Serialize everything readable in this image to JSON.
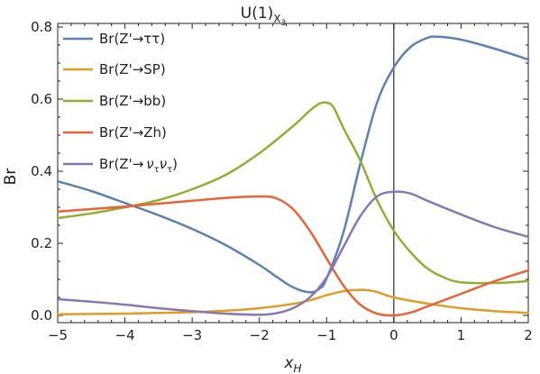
{
  "chart_data": {
    "type": "line",
    "title": "U(1)",
    "title_subscript": "X",
    "title_subsubscript": "3",
    "xlabel": "x",
    "xlabel_subscript": "H",
    "ylabel": "Br",
    "xlim": [
      -5,
      2
    ],
    "ylim": [
      -0.02,
      0.81
    ],
    "xticks": [
      -5,
      -4,
      -3,
      -2,
      -1,
      0,
      1,
      2
    ],
    "xtick_labels": [
      "−5",
      "−4",
      "−3",
      "−2",
      "−1",
      "0",
      "1",
      "2"
    ],
    "yticks": [
      0.0,
      0.2,
      0.4,
      0.6,
      0.8
    ],
    "ytick_labels": [
      "0.0",
      "0.2",
      "0.4",
      "0.6",
      "0.8"
    ],
    "vertical_line_at_x": 0,
    "grid": false,
    "legend_position": "top-left",
    "series": [
      {
        "name": "Br(Z'→ττ)",
        "color": "#5e81b5",
        "x": [
          -5,
          -4.5,
          -4,
          -3.5,
          -3,
          -2.5,
          -2,
          -1.75,
          -1.5,
          -1.25,
          -1.1,
          -1,
          -0.75,
          -0.5,
          -0.25,
          0,
          0.25,
          0.5,
          0.65,
          1,
          1.5,
          2
        ],
        "y": [
          0.372,
          0.345,
          0.312,
          0.278,
          0.24,
          0.195,
          0.14,
          0.108,
          0.078,
          0.064,
          0.075,
          0.102,
          0.23,
          0.42,
          0.59,
          0.688,
          0.745,
          0.77,
          0.773,
          0.765,
          0.74,
          0.71
        ]
      },
      {
        "name": "Br(Z'→SP)",
        "color": "#e19c24",
        "x": [
          -5,
          -4.5,
          -4,
          -3.5,
          -3,
          -2.5,
          -2,
          -1.5,
          -1.25,
          -1,
          -0.75,
          -0.5,
          -0.35,
          -0.25,
          0,
          0.5,
          1,
          1.5,
          2
        ],
        "y": [
          0.003,
          0.004,
          0.005,
          0.007,
          0.009,
          0.013,
          0.02,
          0.032,
          0.042,
          0.056,
          0.067,
          0.071,
          0.069,
          0.065,
          0.05,
          0.033,
          0.02,
          0.012,
          0.007
        ]
      },
      {
        "name": "Br(Z'→bb)",
        "color": "#8fb032",
        "x": [
          -5,
          -4.5,
          -4,
          -3.5,
          -3,
          -2.5,
          -2,
          -1.5,
          -1.25,
          -1.1,
          -1,
          -0.9,
          -0.75,
          -0.5,
          -0.25,
          0,
          0.25,
          0.5,
          0.75,
          1,
          1.5,
          2
        ],
        "y": [
          0.27,
          0.283,
          0.3,
          0.32,
          0.35,
          0.39,
          0.45,
          0.525,
          0.568,
          0.588,
          0.59,
          0.578,
          0.52,
          0.43,
          0.32,
          0.235,
          0.175,
          0.13,
          0.105,
          0.092,
          0.09,
          0.095
        ]
      },
      {
        "name": "Br(Z'→Zh)",
        "color": "#eb6235",
        "x": [
          -5,
          -4.5,
          -4,
          -3.5,
          -3,
          -2.5,
          -2,
          -1.75,
          -1.5,
          -1.25,
          -1,
          -0.75,
          -0.5,
          -0.25,
          0,
          0.25,
          0.5,
          1,
          1.5,
          2
        ],
        "y": [
          0.288,
          0.295,
          0.302,
          0.31,
          0.318,
          0.326,
          0.33,
          0.325,
          0.295,
          0.235,
          0.158,
          0.083,
          0.03,
          0.005,
          0.0,
          0.008,
          0.025,
          0.06,
          0.095,
          0.125
        ]
      },
      {
        "name": "Br(Z'→ ν_τν_τ)",
        "color": "#8778b3",
        "x": [
          -5,
          -4.5,
          -4,
          -3.5,
          -3,
          -2.5,
          -2,
          -1.75,
          -1.5,
          -1.25,
          -1,
          -0.75,
          -0.5,
          -0.25,
          0,
          0.25,
          0.5,
          1,
          1.5,
          2
        ],
        "y": [
          0.045,
          0.038,
          0.03,
          0.02,
          0.012,
          0.005,
          0.002,
          0.006,
          0.02,
          0.05,
          0.105,
          0.19,
          0.275,
          0.33,
          0.343,
          0.338,
          0.318,
          0.28,
          0.245,
          0.218
        ]
      }
    ]
  },
  "legend": {
    "items": [
      {
        "label": "Br(Z'→ττ)"
      },
      {
        "label": "Br(Z'→SP)"
      },
      {
        "label": "Br(Z'→bb)"
      },
      {
        "label": "Br(Z'→Zh)"
      },
      {
        "label": "Br(Z'→",
        "sub_a": "ν",
        "sub_a_index": "τ",
        "sub_b": "ν",
        "sub_b_index": "τ",
        "close": ")"
      }
    ]
  }
}
